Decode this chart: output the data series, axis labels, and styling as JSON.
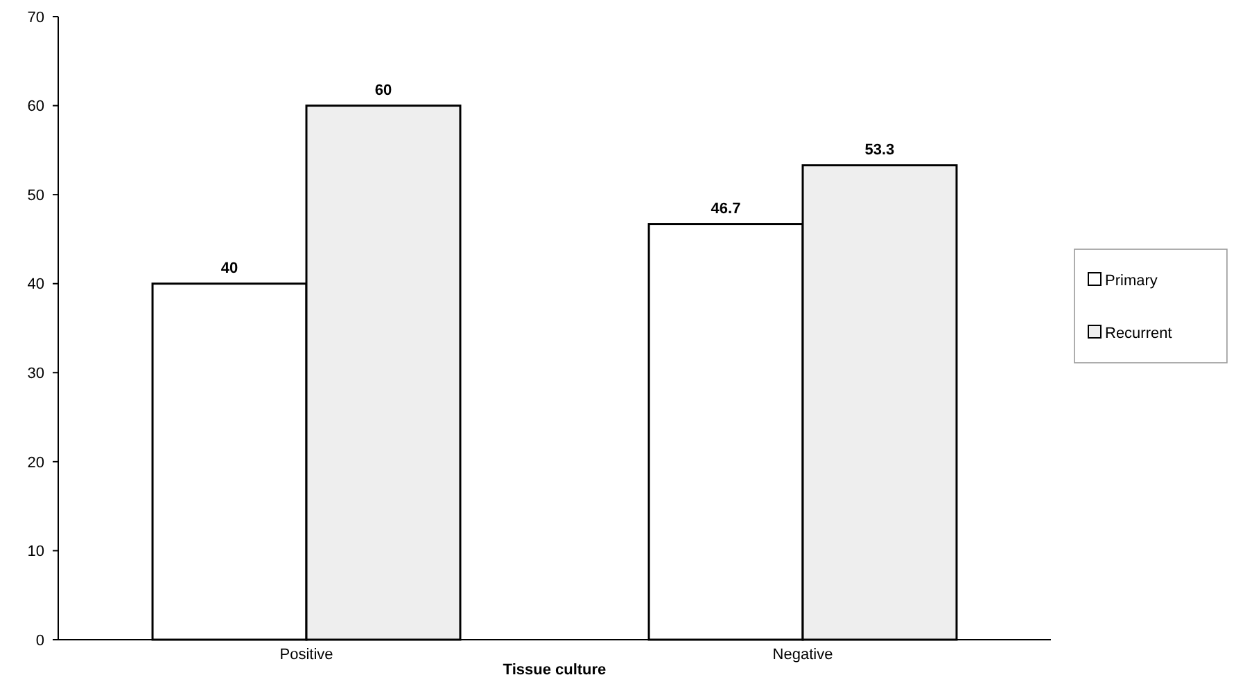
{
  "chart_data": {
    "type": "bar",
    "xlabel": "Tissue culture",
    "categories": [
      "Positive",
      "Negative"
    ],
    "series": [
      {
        "name": "Primary",
        "color": "#ffffff",
        "values": [
          40,
          46.7
        ]
      },
      {
        "name": "Recurrent",
        "color": "#eeeeee",
        "values": [
          60,
          53.3
        ]
      }
    ],
    "ylim": [
      0,
      70
    ],
    "yticks": [
      0,
      10,
      20,
      30,
      40,
      50,
      60,
      70
    ],
    "data_labels": true,
    "legend": "right",
    "grid": false
  }
}
